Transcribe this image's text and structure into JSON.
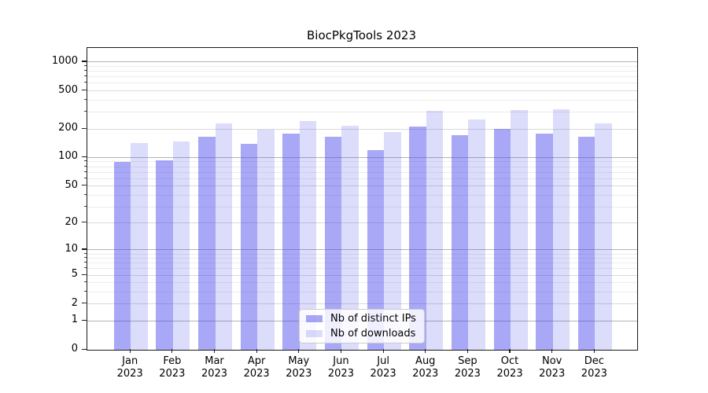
{
  "chart_data": {
    "type": "bar",
    "title": "BiocPkgTools 2023",
    "categories": [
      "Jan 2023",
      "Feb 2023",
      "Mar 2023",
      "Apr 2023",
      "May 2023",
      "Jun 2023",
      "Jul 2023",
      "Aug 2023",
      "Sep 2023",
      "Oct 2023",
      "Nov 2023",
      "Dec 2023"
    ],
    "series": [
      {
        "name": "Nb of distinct IPs",
        "color": "rgba(70,70,235,0.47)",
        "swatch_hex": "#a8a8f6",
        "values": [
          90,
          93,
          166,
          139,
          180,
          166,
          121,
          210,
          171,
          201,
          179,
          166
        ]
      },
      {
        "name": "Nb of downloads",
        "color": "rgba(70,70,235,0.19)",
        "swatch_hex": "#dcdcfb",
        "values": [
          143,
          147,
          228,
          197,
          240,
          218,
          184,
          308,
          253,
          314,
          322,
          228
        ]
      }
    ],
    "xlabel": "",
    "ylabel": "",
    "yscale": "log1p",
    "ylim": [
      0,
      1400
    ],
    "y_ticks": [
      0,
      1,
      2,
      5,
      10,
      20,
      50,
      100,
      200,
      500,
      1000
    ],
    "grid": "on",
    "gridline_values": {
      "major": [
        1,
        10,
        100,
        1000
      ],
      "mid": [
        2,
        5,
        20,
        50,
        200,
        500
      ],
      "minor": [
        3,
        4,
        6,
        7,
        8,
        9,
        30,
        40,
        60,
        70,
        80,
        90,
        300,
        400,
        600,
        700,
        800,
        900
      ]
    },
    "grid_colors": {
      "major": "#b3b3b3",
      "mid": "#d9d9d9",
      "minor": "#ececec"
    },
    "axis_color": "#1a1a1a",
    "legend_position": "lower center"
  }
}
